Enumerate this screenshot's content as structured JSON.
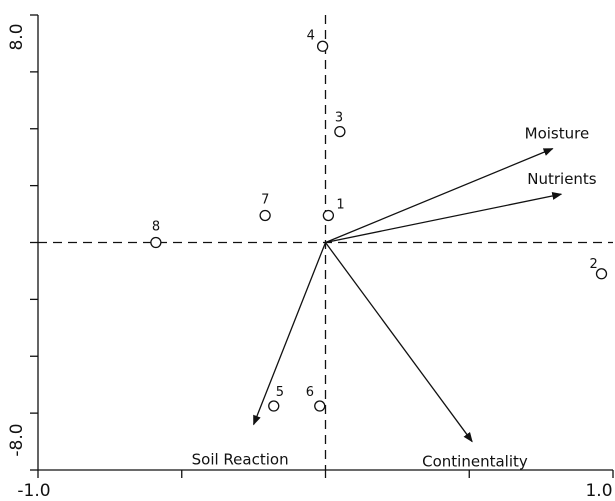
{
  "chart_data": {
    "type": "scatter",
    "title": "",
    "xlabel": "",
    "ylabel": "",
    "xlim": [
      -1.0,
      1.0
    ],
    "ylim": [
      -8.0,
      8.0
    ],
    "x_tick_labels": [
      "-1.0",
      "1.0"
    ],
    "y_tick_labels": [
      "8.0",
      "-8.0"
    ],
    "x_ticks": [
      -1.0,
      -0.5,
      0.0,
      0.5,
      1.0
    ],
    "y_ticks": [
      -8,
      -6,
      -4,
      -2,
      0,
      2,
      4,
      6,
      8
    ],
    "reference_lines": {
      "x": 0,
      "y": 0,
      "style": "dashed"
    },
    "grid": false,
    "points": [
      {
        "label": "1",
        "x": 0.01,
        "y": 0.95
      },
      {
        "label": "2",
        "x": 0.96,
        "y": -1.1
      },
      {
        "label": "3",
        "x": 0.05,
        "y": 3.9
      },
      {
        "label": "4",
        "x": -0.01,
        "y": 6.9
      },
      {
        "label": "5",
        "x": -0.18,
        "y": -5.75
      },
      {
        "label": "6",
        "x": -0.02,
        "y": -5.75
      },
      {
        "label": "7",
        "x": -0.21,
        "y": 0.95
      },
      {
        "label": "8",
        "x": -0.59,
        "y": 0.0
      }
    ],
    "vectors": [
      {
        "label": "Moisture",
        "x": 0.79,
        "y": 3.3
      },
      {
        "label": "Nutrients",
        "x": 0.82,
        "y": 1.7
      },
      {
        "label": "Soil Reaction",
        "x": -0.25,
        "y": -6.4
      },
      {
        "label": "Continentality",
        "x": 0.51,
        "y": -7.0
      }
    ]
  }
}
